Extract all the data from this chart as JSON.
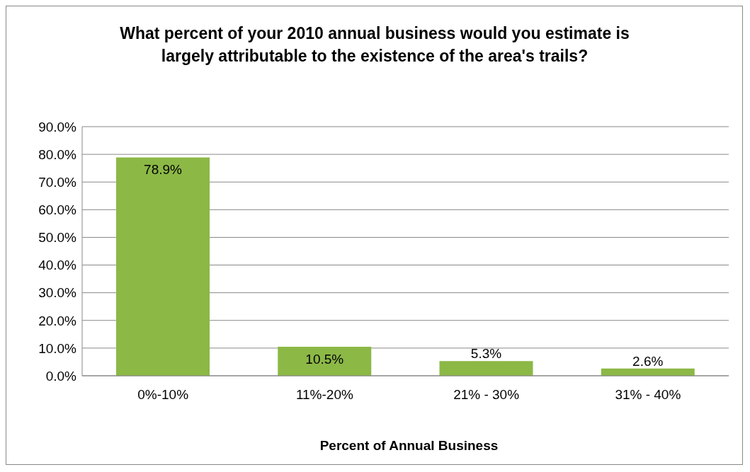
{
  "chart_data": {
    "type": "bar",
    "title": "What percent of your 2010 annual business would you estimate is largely attributable to the existence of the area's trails?",
    "xlabel": "Percent of Annual Business",
    "categories": [
      "0%-10%",
      "11%-20%",
      "21% - 30%",
      "31% - 40%"
    ],
    "values": [
      78.9,
      10.5,
      5.3,
      2.6
    ],
    "color": "#8cb846",
    "value_labels": [
      "78.9%",
      "10.5%",
      "5.3%",
      "2.6%"
    ],
    "ylim": [
      0,
      90
    ],
    "yticks": [
      {
        "value": 0,
        "label": "0.0%"
      },
      {
        "value": 10,
        "label": "10.0%"
      },
      {
        "value": 20,
        "label": "20.0%"
      },
      {
        "value": 30,
        "label": "30.0%"
      },
      {
        "value": 40,
        "label": "40.0%"
      },
      {
        "value": 50,
        "label": "50.0%"
      },
      {
        "value": 60,
        "label": "60.0%"
      },
      {
        "value": 70,
        "label": "70.0%"
      },
      {
        "value": 80,
        "label": "80.0%"
      },
      {
        "value": 90,
        "label": "90.0%"
      }
    ],
    "grid": "y"
  }
}
